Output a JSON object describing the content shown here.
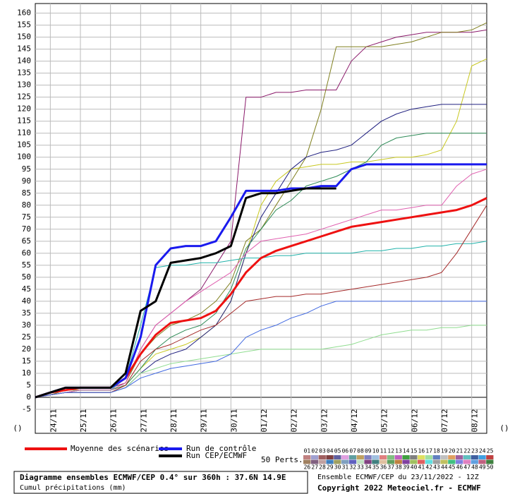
{
  "chart_data": {
    "type": "line",
    "title": "Diagramme ensembles ECMWF/CEP 0.4° sur 360h : 37.6N 14.9E",
    "subtitle": "Cumul précipitations (mm)",
    "run_info": "Ensemble ECMWF/CEP du 23/11/2022 - 12Z",
    "copyright": "Copyright 2022 Meteociel.fr - ECMWF",
    "unit_left": "()",
    "unit_right": "()",
    "categories": [
      null,
      "24/11",
      null,
      "25/11",
      null,
      "26/11",
      null,
      "27/11",
      null,
      "28/11",
      null,
      "29/11",
      null,
      "30/11",
      null,
      "01/12",
      null,
      "02/12",
      null,
      "03/12",
      null,
      "04/12",
      null,
      "05/12",
      null,
      "06/12",
      null,
      "07/12",
      null,
      "08/12",
      null
    ],
    "ylim": [
      -15,
      164
    ],
    "yticks": [
      -5,
      0,
      5,
      10,
      15,
      20,
      25,
      30,
      35,
      40,
      45,
      50,
      55,
      60,
      65,
      70,
      75,
      80,
      85,
      90,
      95,
      100,
      105,
      110,
      115,
      120,
      125,
      130,
      135,
      140,
      145,
      150,
      155,
      160
    ],
    "grid": true,
    "series": [
      {
        "name": "Moyenne des scénarios",
        "color": "#ee1111",
        "values": [
          0,
          2,
          3,
          4,
          4,
          4,
          8,
          18,
          26,
          31,
          32,
          33,
          36,
          43,
          52,
          58,
          61,
          63,
          65,
          67,
          69,
          71,
          72,
          73,
          74,
          75,
          76,
          77,
          78,
          80,
          83
        ]
      },
      {
        "name": "Run de contrôle",
        "color": "#1a1aee",
        "values": [
          0,
          2,
          4,
          4,
          4,
          4,
          8,
          25,
          55,
          62,
          63,
          63,
          65,
          75,
          86,
          86,
          86,
          87,
          87,
          88,
          88,
          95,
          97,
          97,
          97,
          97,
          97,
          97,
          97,
          97,
          97
        ]
      },
      {
        "name": "Run CEP/ECMWF",
        "color": "#000000",
        "values": [
          0,
          2,
          4,
          4,
          4,
          4,
          10,
          36,
          40,
          56,
          57,
          58,
          60,
          63,
          83,
          85,
          85,
          86,
          87,
          87,
          87,
          null,
          null,
          null,
          null,
          null,
          null,
          null,
          null,
          null,
          null
        ]
      }
    ],
    "perturbations": [
      {
        "color": "#8b1a6b",
        "values": [
          0,
          1,
          3,
          4,
          4,
          4,
          6,
          20,
          30,
          35,
          40,
          45,
          55,
          65,
          125,
          125,
          127,
          127,
          128,
          128,
          128,
          140,
          146,
          148,
          150,
          151,
          152,
          152,
          152,
          152,
          153
        ]
      },
      {
        "color": "#808020",
        "values": [
          0,
          1,
          3,
          3,
          3,
          3,
          6,
          18,
          25,
          30,
          32,
          35,
          40,
          48,
          65,
          70,
          80,
          90,
          100,
          120,
          146,
          146,
          146,
          146,
          147,
          148,
          150,
          152,
          152,
          153,
          156
        ]
      },
      {
        "color": "#c8c820",
        "values": [
          0,
          1,
          2,
          3,
          3,
          3,
          5,
          12,
          18,
          20,
          22,
          25,
          30,
          40,
          60,
          80,
          90,
          95,
          96,
          97,
          97,
          98,
          98,
          99,
          100,
          100,
          101,
          103,
          115,
          138,
          141
        ]
      },
      {
        "color": "#202080",
        "values": [
          0,
          1,
          2,
          2,
          2,
          2,
          4,
          10,
          15,
          18,
          20,
          25,
          30,
          40,
          60,
          75,
          85,
          95,
          100,
          102,
          103,
          105,
          110,
          115,
          118,
          120,
          121,
          122,
          122,
          122,
          122
        ]
      },
      {
        "color": "#2e8b57",
        "values": [
          0,
          1,
          2,
          3,
          3,
          3,
          5,
          12,
          20,
          25,
          28,
          30,
          35,
          45,
          62,
          70,
          78,
          82,
          88,
          90,
          92,
          95,
          98,
          105,
          108,
          109,
          110,
          110,
          110,
          110,
          110
        ]
      },
      {
        "color": "#20b2aa",
        "values": [
          0,
          1,
          2,
          3,
          3,
          3,
          8,
          30,
          54,
          55,
          55,
          56,
          56,
          57,
          58,
          58,
          59,
          59,
          60,
          60,
          60,
          60,
          61,
          61,
          62,
          62,
          63,
          63,
          64,
          64,
          65
        ]
      },
      {
        "color": "#90dd90",
        "values": [
          0,
          1,
          2,
          2,
          2,
          2,
          4,
          10,
          12,
          14,
          15,
          16,
          17,
          18,
          19,
          20,
          20,
          20,
          20,
          20,
          21,
          22,
          24,
          26,
          27,
          28,
          28,
          29,
          29,
          30,
          30
        ]
      },
      {
        "color": "#a52a2a",
        "values": [
          0,
          1,
          2,
          2,
          2,
          2,
          5,
          15,
          20,
          22,
          25,
          28,
          30,
          35,
          40,
          41,
          42,
          42,
          43,
          43,
          44,
          45,
          46,
          47,
          48,
          49,
          50,
          52,
          60,
          70,
          80
        ]
      },
      {
        "color": "#e060b0",
        "values": [
          0,
          1,
          2,
          3,
          3,
          3,
          6,
          20,
          30,
          35,
          40,
          44,
          48,
          52,
          60,
          65,
          66,
          67,
          68,
          70,
          72,
          74,
          76,
          78,
          78,
          79,
          80,
          80,
          88,
          93,
          95
        ]
      },
      {
        "color": "#4169e1",
        "values": [
          0,
          1,
          2,
          2,
          2,
          2,
          4,
          8,
          10,
          12,
          13,
          14,
          15,
          18,
          25,
          28,
          30,
          33,
          35,
          38,
          40,
          40,
          40,
          40,
          40,
          40,
          40,
          40,
          40,
          40,
          40
        ]
      }
    ],
    "perturbation_legend": {
      "label": "50 Perts.",
      "items": [
        {
          "name": "01",
          "color": "#c08080"
        },
        {
          "name": "02",
          "color": "#a0a0d0"
        },
        {
          "name": "03",
          "color": "#a06060"
        },
        {
          "name": "04",
          "color": "#804040"
        },
        {
          "name": "05",
          "color": "#6060a0"
        },
        {
          "name": "06",
          "color": "#e0a0e0"
        },
        {
          "name": "07",
          "color": "#60a0a0"
        },
        {
          "name": "08",
          "color": "#c0a060"
        },
        {
          "name": "09",
          "color": "#8080c0"
        },
        {
          "name": "10",
          "color": "#a0c0e0"
        },
        {
          "name": "11",
          "color": "#e08080"
        },
        {
          "name": "12",
          "color": "#80c080"
        },
        {
          "name": "13",
          "color": "#c060c0"
        },
        {
          "name": "14",
          "color": "#40a040"
        },
        {
          "name": "15",
          "color": "#808080"
        },
        {
          "name": "16",
          "color": "#e0e060"
        },
        {
          "name": "17",
          "color": "#a0e0a0"
        },
        {
          "name": "18",
          "color": "#6080c0"
        },
        {
          "name": "19",
          "color": "#c0c0c0"
        },
        {
          "name": "20",
          "color": "#e0a060"
        },
        {
          "name": "21",
          "color": "#a060a0"
        },
        {
          "name": "22",
          "color": "#60c0c0"
        },
        {
          "name": "23",
          "color": "#4060a0"
        },
        {
          "name": "24",
          "color": "#40a0e0"
        },
        {
          "name": "25",
          "color": "#c04040"
        },
        {
          "name": "26",
          "color": "#a08060"
        },
        {
          "name": "27",
          "color": "#806080"
        },
        {
          "name": "28",
          "color": "#c0a0a0"
        },
        {
          "name": "29",
          "color": "#4080c0"
        },
        {
          "name": "30",
          "color": "#a0a060"
        },
        {
          "name": "31",
          "color": "#80a0c0"
        },
        {
          "name": "32",
          "color": "#6060c0"
        },
        {
          "name": "33",
          "color": "#c0e0c0"
        },
        {
          "name": "34",
          "color": "#804080"
        },
        {
          "name": "35",
          "color": "#408080"
        },
        {
          "name": "36",
          "color": "#e0c0a0"
        },
        {
          "name": "37",
          "color": "#60a060"
        },
        {
          "name": "38",
          "color": "#c08040"
        },
        {
          "name": "39",
          "color": "#8040a0"
        },
        {
          "name": "40",
          "color": "#a0c060"
        },
        {
          "name": "41",
          "color": "#e06060"
        },
        {
          "name": "42",
          "color": "#60e0e0"
        },
        {
          "name": "43",
          "color": "#a0a0a0"
        },
        {
          "name": "44",
          "color": "#c0c060"
        },
        {
          "name": "45",
          "color": "#40c080"
        },
        {
          "name": "46",
          "color": "#8080e0"
        },
        {
          "name": "47",
          "color": "#e080c0"
        },
        {
          "name": "48",
          "color": "#60a0e0"
        },
        {
          "name": "49",
          "color": "#c06080"
        },
        {
          "name": "50",
          "color": "#408040"
        }
      ]
    }
  }
}
